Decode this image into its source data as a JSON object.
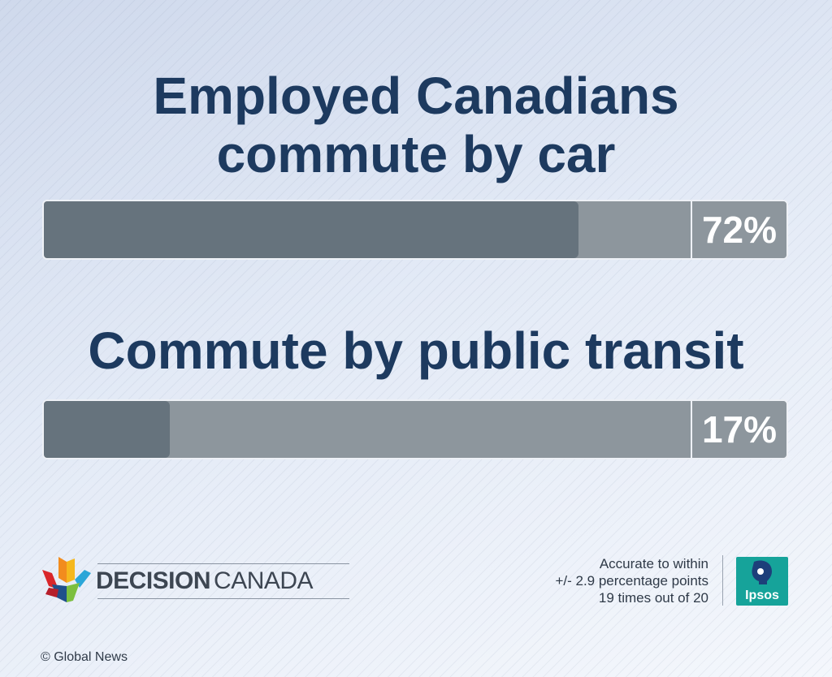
{
  "chart_data": {
    "type": "bar",
    "orientation": "horizontal",
    "categories": [
      "Employed Canadians commute by car",
      "Commute by public transit"
    ],
    "values": [
      72,
      17
    ],
    "value_labels": [
      "72%",
      "17%"
    ],
    "xlim": [
      0,
      100
    ],
    "colors": {
      "fill": "#66737d",
      "track": "#8d969d",
      "title": "#1d3a5f"
    }
  },
  "titles": {
    "line1a": "Employed Canadians",
    "line1b": "commute by car",
    "line2": "Commute by public transit"
  },
  "footer": {
    "brand_bold": "DECISION",
    "brand_regular": "CANADA",
    "accuracy_lines": [
      "Accurate to within",
      "+/- 2.9 percentage points",
      "19 times out of 20"
    ],
    "pollster": "Ipsos",
    "credit": "© Global News",
    "logo_icon": "maple-leaf-icon",
    "pollster_icon": "ipsos-head-icon"
  }
}
